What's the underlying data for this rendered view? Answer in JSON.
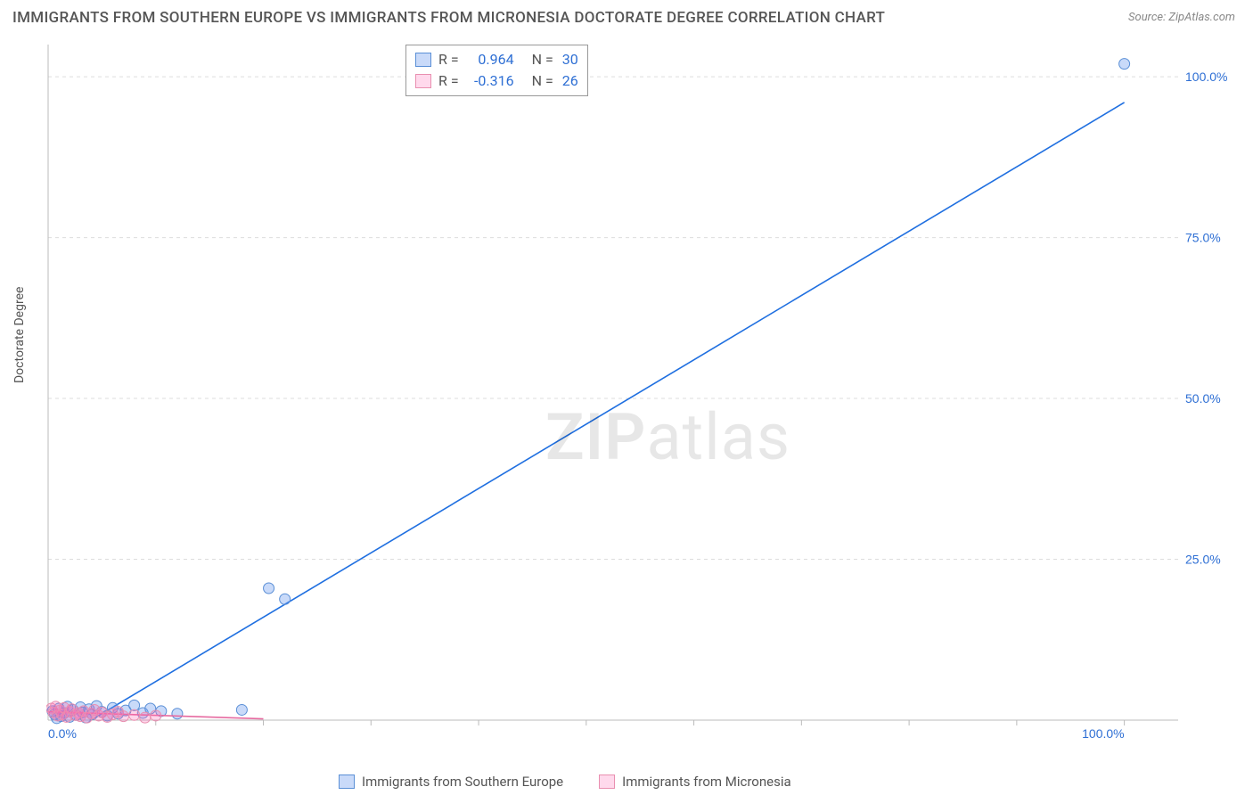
{
  "title": "IMMIGRANTS FROM SOUTHERN EUROPE VS IMMIGRANTS FROM MICRONESIA DOCTORATE DEGREE CORRELATION CHART",
  "source": "Source: ZipAtlas.com",
  "y_axis_label": "Doctorate Degree",
  "watermark_a": "ZIP",
  "watermark_b": "atlas",
  "chart": {
    "type": "scatter",
    "background_color": "#ffffff",
    "grid_color": "#dddddd",
    "axis_color": "#bbbbbb",
    "xlim": [
      0,
      105
    ],
    "ylim": [
      0,
      105
    ],
    "x_ticks": [
      {
        "v": 0,
        "label": "0.0%"
      },
      {
        "v": 100,
        "label": "100.0%"
      }
    ],
    "y_ticks": [
      {
        "v": 25,
        "label": "25.0%"
      },
      {
        "v": 50,
        "label": "50.0%"
      },
      {
        "v": 75,
        "label": "75.0%"
      },
      {
        "v": 100,
        "label": "100.0%"
      }
    ],
    "y_tick_color": "#2e6fd4",
    "x_tick_color": "#2e6fd4",
    "grid_x_positions": [
      10,
      20,
      30,
      40,
      50,
      60,
      70,
      80,
      90,
      100
    ],
    "grid_y_positions": [
      25,
      50,
      75,
      100
    ],
    "series": [
      {
        "name": "Immigrants from Southern Europe",
        "marker_color": "rgba(100,149,237,0.35)",
        "marker_stroke": "#5a8fd6",
        "marker_radius": 6,
        "line_color": "#1f6fe0",
        "line_width": 1.6,
        "R": "0.964",
        "N": "30",
        "trend": {
          "x1": 4,
          "y1": 0,
          "x2": 100,
          "y2": 96
        },
        "points": [
          [
            0.4,
            1.4
          ],
          [
            0.6,
            0.9
          ],
          [
            0.8,
            0.3
          ],
          [
            1.0,
            1.8
          ],
          [
            1.2,
            0.6
          ],
          [
            1.5,
            1.1
          ],
          [
            1.8,
            2.1
          ],
          [
            2.0,
            0.5
          ],
          [
            2.3,
            1.6
          ],
          [
            2.6,
            0.8
          ],
          [
            3.0,
            2.0
          ],
          [
            3.2,
            1.2
          ],
          [
            3.5,
            0.4
          ],
          [
            3.8,
            1.7
          ],
          [
            4.1,
            0.9
          ],
          [
            4.5,
            2.2
          ],
          [
            5.0,
            1.3
          ],
          [
            5.5,
            0.7
          ],
          [
            6.0,
            1.9
          ],
          [
            6.5,
            1.0
          ],
          [
            7.2,
            1.5
          ],
          [
            8.0,
            2.3
          ],
          [
            8.8,
            1.1
          ],
          [
            9.5,
            1.8
          ],
          [
            10.5,
            1.4
          ],
          [
            12.0,
            1.0
          ],
          [
            18.0,
            1.6
          ],
          [
            20.5,
            20.5
          ],
          [
            22.0,
            18.8
          ],
          [
            100,
            102
          ]
        ]
      },
      {
        "name": "Immigrants from Micronesia",
        "marker_color": "rgba(255,105,180,0.28)",
        "marker_stroke": "#e98fb0",
        "marker_radius": 6,
        "line_color": "#e66aa0",
        "line_width": 1.6,
        "R": "-0.316",
        "N": "26",
        "trend": {
          "x1": 0,
          "y1": 1.3,
          "x2": 20,
          "y2": 0.2
        },
        "points": [
          [
            0.3,
            1.8
          ],
          [
            0.5,
            1.2
          ],
          [
            0.7,
            2.1
          ],
          [
            0.9,
            0.7
          ],
          [
            1.1,
            1.5
          ],
          [
            1.3,
            0.9
          ],
          [
            1.5,
            1.9
          ],
          [
            1.7,
            0.5
          ],
          [
            2.0,
            1.3
          ],
          [
            2.2,
            1.7
          ],
          [
            2.5,
            0.8
          ],
          [
            2.8,
            1.1
          ],
          [
            3.0,
            0.6
          ],
          [
            3.3,
            1.4
          ],
          [
            3.6,
            0.4
          ],
          [
            4.0,
            1.0
          ],
          [
            4.3,
            1.6
          ],
          [
            4.7,
            0.7
          ],
          [
            5.0,
            1.2
          ],
          [
            5.5,
            0.5
          ],
          [
            6.0,
            0.9
          ],
          [
            6.5,
            1.3
          ],
          [
            7.0,
            0.6
          ],
          [
            8.0,
            0.8
          ],
          [
            9.0,
            0.4
          ],
          [
            10.0,
            0.7
          ]
        ]
      }
    ]
  },
  "legend_stats": [
    {
      "swatch": "blue",
      "R": "0.964",
      "N": "30"
    },
    {
      "swatch": "pink",
      "R": "-0.316",
      "N": "26"
    }
  ],
  "bottom_legend": [
    {
      "swatch": "blue",
      "label": "Immigrants from Southern Europe"
    },
    {
      "swatch": "pink",
      "label": "Immigrants from Micronesia"
    }
  ]
}
